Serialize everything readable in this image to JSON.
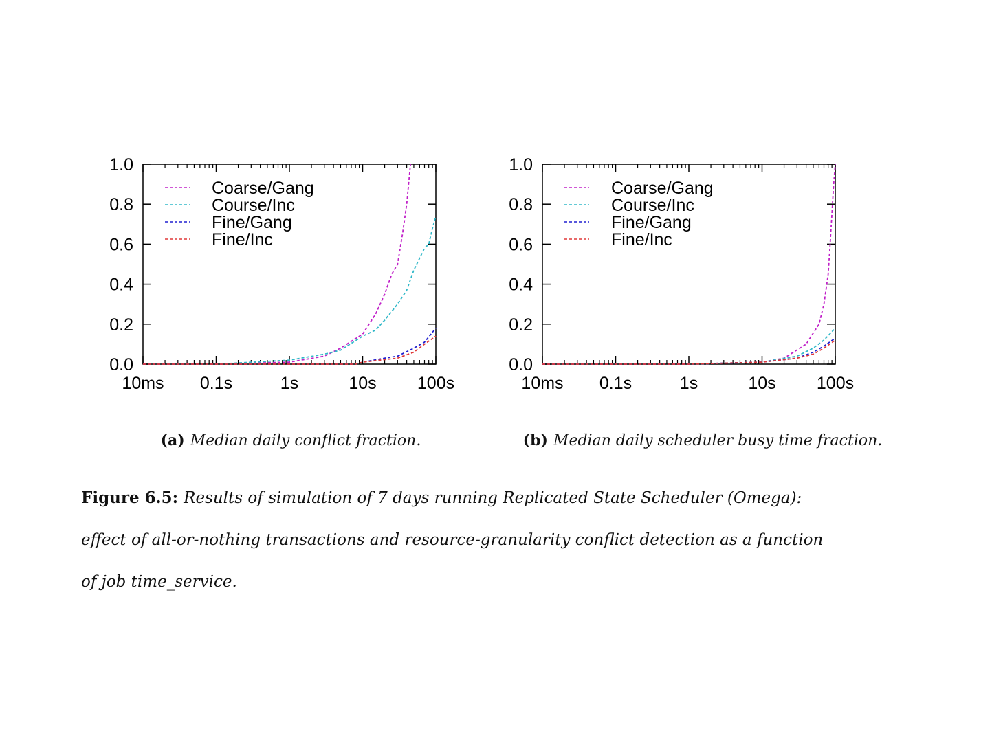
{
  "chart_data": [
    {
      "type": "line",
      "caption_label": "(a)",
      "caption": "Median daily conflict fraction.",
      "xscale": "log",
      "xlim": [
        0.01,
        100
      ],
      "xticks": [
        {
          "value": 0.01,
          "label": "10ms"
        },
        {
          "value": 0.1,
          "label": "0.1s"
        },
        {
          "value": 1,
          "label": "1s"
        },
        {
          "value": 10,
          "label": "10s"
        },
        {
          "value": 100,
          "label": "100s"
        }
      ],
      "ylim": [
        0,
        1
      ],
      "yticks": [
        {
          "value": 0,
          "label": "0.0"
        },
        0.2,
        0.4,
        0.6,
        0.8,
        {
          "value": 1,
          "label": "1.0"
        }
      ],
      "legend": "top-left",
      "dashed": true,
      "series": [
        {
          "name": "Coarse/Gang",
          "color": "#c020c8",
          "x": [
            0.01,
            0.1,
            1,
            3,
            5,
            10,
            15,
            20,
            25,
            30,
            35,
            40,
            45
          ],
          "values": [
            0,
            0,
            0.01,
            0.04,
            0.08,
            0.15,
            0.25,
            0.35,
            0.45,
            0.5,
            0.65,
            0.8,
            1.0
          ]
        },
        {
          "name": "Course/Inc",
          "color": "#30b8c8",
          "x": [
            0.01,
            0.1,
            1,
            3,
            5,
            10,
            15,
            20,
            30,
            40,
            50,
            70,
            80,
            90,
            100
          ],
          "values": [
            0,
            0,
            0.02,
            0.05,
            0.07,
            0.14,
            0.17,
            0.22,
            0.3,
            0.37,
            0.47,
            0.58,
            0.6,
            0.68,
            0.74
          ]
        },
        {
          "name": "Fine/Gang",
          "color": "#2020d0",
          "x": [
            0.01,
            0.1,
            1,
            8,
            10,
            20,
            30,
            50,
            70,
            100
          ],
          "values": [
            0,
            0,
            0,
            0,
            0.01,
            0.03,
            0.04,
            0.08,
            0.11,
            0.18
          ]
        },
        {
          "name": "Fine/Inc",
          "color": "#e03838",
          "x": [
            0.01,
            0.1,
            1,
            8,
            10,
            30,
            50,
            70,
            100
          ],
          "values": [
            0,
            0,
            0,
            0,
            0.01,
            0.03,
            0.06,
            0.1,
            0.14
          ]
        }
      ]
    },
    {
      "type": "line",
      "caption_label": "(b)",
      "caption": "Median daily scheduler busy time fraction.",
      "xscale": "log",
      "xlim": [
        0.01,
        100
      ],
      "xticks": [
        {
          "value": 0.01,
          "label": "10ms"
        },
        {
          "value": 0.1,
          "label": "0.1s"
        },
        {
          "value": 1,
          "label": "1s"
        },
        {
          "value": 10,
          "label": "10s"
        },
        {
          "value": 100,
          "label": "100s"
        }
      ],
      "ylim": [
        0,
        1
      ],
      "yticks": [
        {
          "value": 0,
          "label": "0.0"
        },
        0.2,
        0.4,
        0.6,
        0.8,
        {
          "value": 1,
          "label": "1.0"
        }
      ],
      "legend": "top-left",
      "dashed": true,
      "series": [
        {
          "name": "Coarse/Gang",
          "color": "#c020c8",
          "x": [
            0.01,
            0.1,
            1,
            10,
            20,
            40,
            60,
            70,
            80,
            85,
            90,
            95,
            100
          ],
          "values": [
            0,
            0,
            0,
            0.01,
            0.03,
            0.1,
            0.2,
            0.3,
            0.45,
            0.6,
            0.75,
            0.9,
            1.0
          ]
        },
        {
          "name": "Course/Inc",
          "color": "#30b8c8",
          "x": [
            0.01,
            0.1,
            1,
            10,
            30,
            50,
            70,
            100
          ],
          "values": [
            0,
            0,
            0,
            0.01,
            0.04,
            0.08,
            0.12,
            0.18
          ]
        },
        {
          "name": "Fine/Gang",
          "color": "#2020d0",
          "x": [
            0.01,
            0.1,
            1,
            10,
            30,
            50,
            70,
            100
          ],
          "values": [
            0,
            0,
            0,
            0.01,
            0.03,
            0.06,
            0.09,
            0.13
          ]
        },
        {
          "name": "Fine/Inc",
          "color": "#e03838",
          "x": [
            0.01,
            0.1,
            1,
            10,
            30,
            50,
            70,
            100
          ],
          "values": [
            0,
            0,
            0,
            0.01,
            0.03,
            0.05,
            0.08,
            0.12
          ]
        }
      ]
    }
  ],
  "figure_caption": {
    "label": "Figure 6.5:",
    "text_lines": [
      "Results of simulation of 7 days running Replicated State Scheduler (Omega):",
      "effect of all-or-nothing transactions and resource-granularity conflict detection as a function",
      "of job time_service."
    ]
  }
}
